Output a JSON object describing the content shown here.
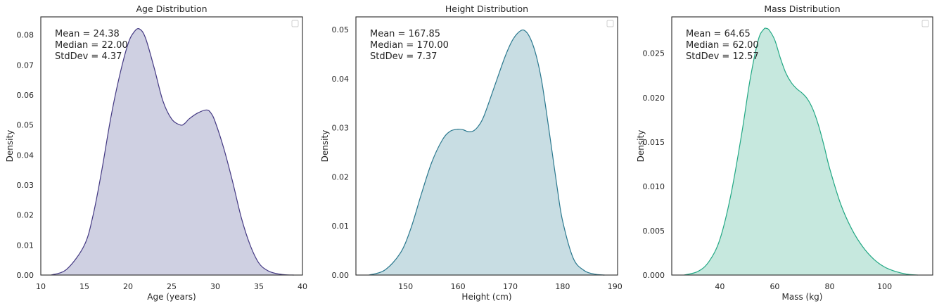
{
  "chart_data": [
    {
      "type": "area",
      "title": "Age Distribution",
      "xlabel": "Age (years)",
      "ylabel": "Density",
      "xlim": [
        10,
        40
      ],
      "ylim": [
        0,
        0.086
      ],
      "xticks": [
        "10",
        "15",
        "20",
        "25",
        "30",
        "35",
        "40"
      ],
      "yticks": [
        "0.00",
        "0.01",
        "0.02",
        "0.03",
        "0.04",
        "0.05",
        "0.06",
        "0.07",
        "0.08"
      ],
      "stats": [
        "Mean = 24.38",
        "Median = 22.00",
        "StdDev = 4.37"
      ],
      "color": "#443983",
      "fill": "#cfd0e2",
      "legend": "top-right",
      "grid": false,
      "x": [
        11.2,
        13,
        15,
        16,
        17,
        18,
        19,
        20,
        20.7,
        21.3,
        22,
        23,
        24,
        25,
        26,
        26.5,
        27,
        28,
        29,
        29.5,
        30,
        31,
        32,
        33,
        34,
        35,
        36,
        37,
        38,
        39
      ],
      "y": [
        0.0,
        0.002,
        0.01,
        0.02,
        0.035,
        0.052,
        0.066,
        0.077,
        0.081,
        0.082,
        0.079,
        0.069,
        0.058,
        0.052,
        0.05,
        0.0505,
        0.052,
        0.054,
        0.055,
        0.054,
        0.051,
        0.042,
        0.031,
        0.019,
        0.01,
        0.004,
        0.0015,
        0.0005,
        0.0001,
        0.0
      ]
    },
    {
      "type": "area",
      "title": "Height Distribution",
      "xlabel": "Height (cm)",
      "ylabel": "Density",
      "xlim": [
        140.5,
        190.5
      ],
      "ylim": [
        0,
        0.0526
      ],
      "xticks": [
        "150",
        "160",
        "170",
        "180",
        "190"
      ],
      "yticks": [
        "0.00",
        "0.01",
        "0.02",
        "0.03",
        "0.04",
        "0.05"
      ],
      "stats": [
        "Mean = 167.85",
        "Median = 170.00",
        "StdDev = 7.37"
      ],
      "color": "#2a788e",
      "fill": "#c8dde3",
      "legend": "top-right",
      "grid": false,
      "x": [
        143,
        146,
        149,
        151,
        153,
        155,
        157,
        158.5,
        160,
        161,
        162,
        163,
        164,
        165,
        167,
        169,
        170.5,
        172,
        173,
        174,
        175,
        176,
        177,
        178,
        179,
        180,
        182,
        184,
        186,
        188
      ],
      "y": [
        0.0,
        0.001,
        0.0045,
        0.0095,
        0.0165,
        0.023,
        0.0275,
        0.0293,
        0.0297,
        0.0296,
        0.0292,
        0.0294,
        0.0305,
        0.0325,
        0.0385,
        0.0445,
        0.048,
        0.0498,
        0.0496,
        0.0478,
        0.0445,
        0.0395,
        0.0325,
        0.025,
        0.0175,
        0.011,
        0.0035,
        0.001,
        0.0002,
        0.0
      ]
    },
    {
      "type": "area",
      "title": "Mass Distribution",
      "xlabel": "Mass (kg)",
      "ylabel": "Density",
      "xlim": [
        22.5,
        117.5
      ],
      "ylim": [
        0,
        0.0291
      ],
      "xticks": [
        "40",
        "60",
        "80",
        "100"
      ],
      "yticks": [
        "0.000",
        "0.005",
        "0.010",
        "0.015",
        "0.020",
        "0.025"
      ],
      "stats": [
        "Mean = 64.65",
        "Median = 62.00",
        "StdDev = 12.57"
      ],
      "color": "#22a884",
      "fill": "#c6e8de",
      "legend": "top-right",
      "grid": false,
      "x": [
        27,
        32,
        36,
        40,
        44,
        48,
        51,
        54,
        56,
        57,
        58,
        60,
        62,
        64,
        66,
        68,
        70,
        72,
        74,
        76,
        78,
        80,
        84,
        88,
        92,
        96,
        100,
        104,
        108,
        112
      ],
      "y": [
        0.0,
        0.0004,
        0.0015,
        0.004,
        0.009,
        0.016,
        0.022,
        0.0265,
        0.0277,
        0.0278,
        0.0276,
        0.0265,
        0.0245,
        0.0228,
        0.0217,
        0.021,
        0.0205,
        0.0198,
        0.0186,
        0.0168,
        0.0145,
        0.012,
        0.008,
        0.0052,
        0.0032,
        0.0018,
        0.0009,
        0.0004,
        0.0001,
        0.0
      ]
    }
  ]
}
